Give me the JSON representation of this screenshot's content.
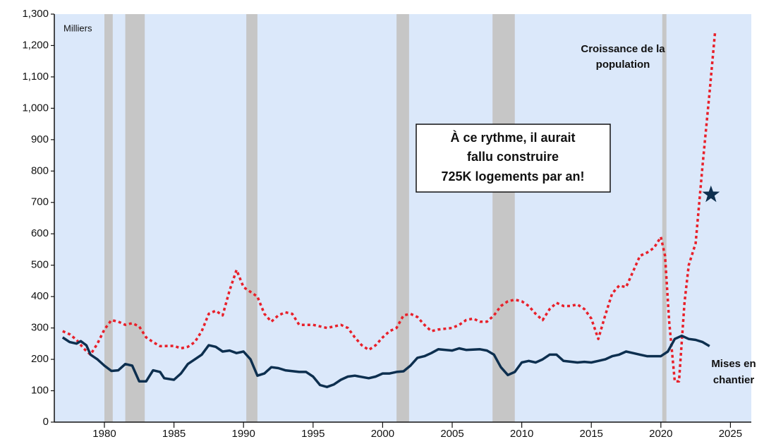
{
  "chart_data": {
    "type": "line",
    "unit_label": "Milliers",
    "xlim": [
      1976.4,
      2026.5
    ],
    "xticks": [
      1980,
      1985,
      1990,
      1995,
      2000,
      2005,
      2010,
      2015,
      2020,
      2025
    ],
    "ylim": [
      0,
      1300
    ],
    "yticks": [
      0,
      100,
      200,
      300,
      400,
      500,
      600,
      700,
      800,
      900,
      {
        "value": 1000,
        "label": "1,000"
      },
      {
        "value": 1100,
        "label": "1,100"
      },
      {
        "value": 1200,
        "label": "1,200"
      },
      {
        "value": 1300,
        "label": "1,300"
      }
    ],
    "background_color": "#dbe8fa",
    "recession_color": "#c6c6c6",
    "recessions": [
      [
        1980.0,
        1980.6
      ],
      [
        1981.5,
        1982.9
      ],
      [
        1990.2,
        1991.0
      ],
      [
        2001.0,
        2001.9
      ],
      [
        2007.9,
        2009.5
      ],
      [
        2020.1,
        2020.4
      ]
    ],
    "series": [
      {
        "name": [
          "Croissance de la",
          "population"
        ],
        "color": "#e8202a",
        "dashed": true,
        "x": [
          1977,
          1977.5,
          1978,
          1978.5,
          1979,
          1979.5,
          1980,
          1980.5,
          1981,
          1981.5,
          1982,
          1982.5,
          1983,
          1983.5,
          1984,
          1985,
          1985.5,
          1986,
          1986.5,
          1987,
          1987.5,
          1988,
          1988.5,
          1989,
          1989.5,
          1990,
          1990.5,
          1991,
          1991.5,
          1992,
          1992.5,
          1993,
          1993.5,
          1994,
          1995,
          1996,
          1996.5,
          1997,
          1997.5,
          1998,
          1998.5,
          1999,
          1999.5,
          2000,
          2000.5,
          2001,
          2001.5,
          2002,
          2002.5,
          2003,
          2003.5,
          2004,
          2005,
          2005.5,
          2006,
          2006.5,
          2007,
          2007.5,
          2008,
          2008.5,
          2009,
          2009.5,
          2010,
          2010.5,
          2011,
          2011.5,
          2012,
          2012.5,
          2013,
          2013.5,
          2014,
          2014.5,
          2015,
          2015.5,
          2016,
          2016.5,
          2017,
          2017.5,
          2018,
          2018.5,
          2019,
          2019.5,
          2020,
          2020.3,
          2020.6,
          2021,
          2021.3,
          2021.7,
          2022,
          2022.5,
          2023,
          2023.5,
          2023.9
        ],
        "values": [
          290,
          280,
          262,
          235,
          215,
          250,
          295,
          325,
          320,
          310,
          315,
          305,
          270,
          255,
          242,
          243,
          235,
          240,
          255,
          290,
          345,
          355,
          340,
          420,
          485,
          430,
          415,
          400,
          345,
          320,
          340,
          350,
          345,
          310,
          310,
          300,
          305,
          310,
          300,
          270,
          245,
          230,
          245,
          270,
          290,
          300,
          340,
          345,
          335,
          310,
          290,
          295,
          300,
          310,
          325,
          330,
          320,
          320,
          340,
          370,
          385,
          390,
          385,
          370,
          345,
          325,
          360,
          380,
          370,
          370,
          375,
          360,
          330,
          265,
          340,
          410,
          435,
          430,
          480,
          530,
          540,
          555,
          590,
          530,
          320,
          130,
          130,
          380,
          500,
          570,
          820,
          1050,
          1245
        ]
      },
      {
        "name": [
          "Mises en",
          "chantier"
        ],
        "color": "#0d2f4f",
        "dashed": false,
        "x": [
          1977,
          1977.5,
          1978,
          1978.3,
          1978.7,
          1979,
          1979.5,
          1980,
          1980.5,
          1981,
          1981.5,
          1982,
          1982.5,
          1983,
          1983.5,
          1984,
          1984.3,
          1985,
          1985.5,
          1986,
          1986.5,
          1987,
          1987.5,
          1988,
          1988.5,
          1989,
          1989.5,
          1990,
          1990.5,
          1991,
          1991.5,
          1992,
          1992.5,
          1993,
          1994,
          1994.5,
          1995,
          1995.5,
          1996,
          1996.5,
          1997,
          1997.5,
          1998,
          1999,
          1999.5,
          2000,
          2000.5,
          2001,
          2001.5,
          2002,
          2002.5,
          2003,
          2003.5,
          2004,
          2005,
          2005.5,
          2006,
          2007,
          2007.5,
          2008,
          2008.5,
          2009,
          2009.5,
          2010,
          2010.5,
          2011,
          2011.5,
          2012,
          2012.5,
          2013,
          2014,
          2014.5,
          2015,
          2015.5,
          2016,
          2016.5,
          2017,
          2017.5,
          2018,
          2018.5,
          2019,
          2019.5,
          2020,
          2020.5,
          2021,
          2021.5,
          2022,
          2022.5,
          2023,
          2023.5
        ],
        "values": [
          270,
          255,
          250,
          258,
          245,
          215,
          200,
          180,
          163,
          165,
          185,
          180,
          130,
          130,
          165,
          160,
          140,
          135,
          155,
          185,
          200,
          215,
          245,
          240,
          225,
          228,
          220,
          225,
          200,
          148,
          155,
          175,
          172,
          165,
          160,
          160,
          145,
          118,
          112,
          120,
          135,
          145,
          148,
          140,
          145,
          155,
          155,
          160,
          162,
          180,
          205,
          210,
          220,
          232,
          228,
          235,
          230,
          232,
          228,
          215,
          175,
          150,
          160,
          190,
          195,
          190,
          200,
          215,
          215,
          195,
          190,
          192,
          190,
          195,
          200,
          210,
          215,
          225,
          220,
          215,
          210,
          210,
          210,
          225,
          265,
          275,
          265,
          262,
          255,
          242
        ]
      }
    ],
    "marker": {
      "x": 2023.6,
      "value": 725,
      "color": "#0d2f4f"
    },
    "annotation": [
      "À ce rythme, il aurait",
      "fallu construire",
      "725K logements par an!"
    ]
  }
}
